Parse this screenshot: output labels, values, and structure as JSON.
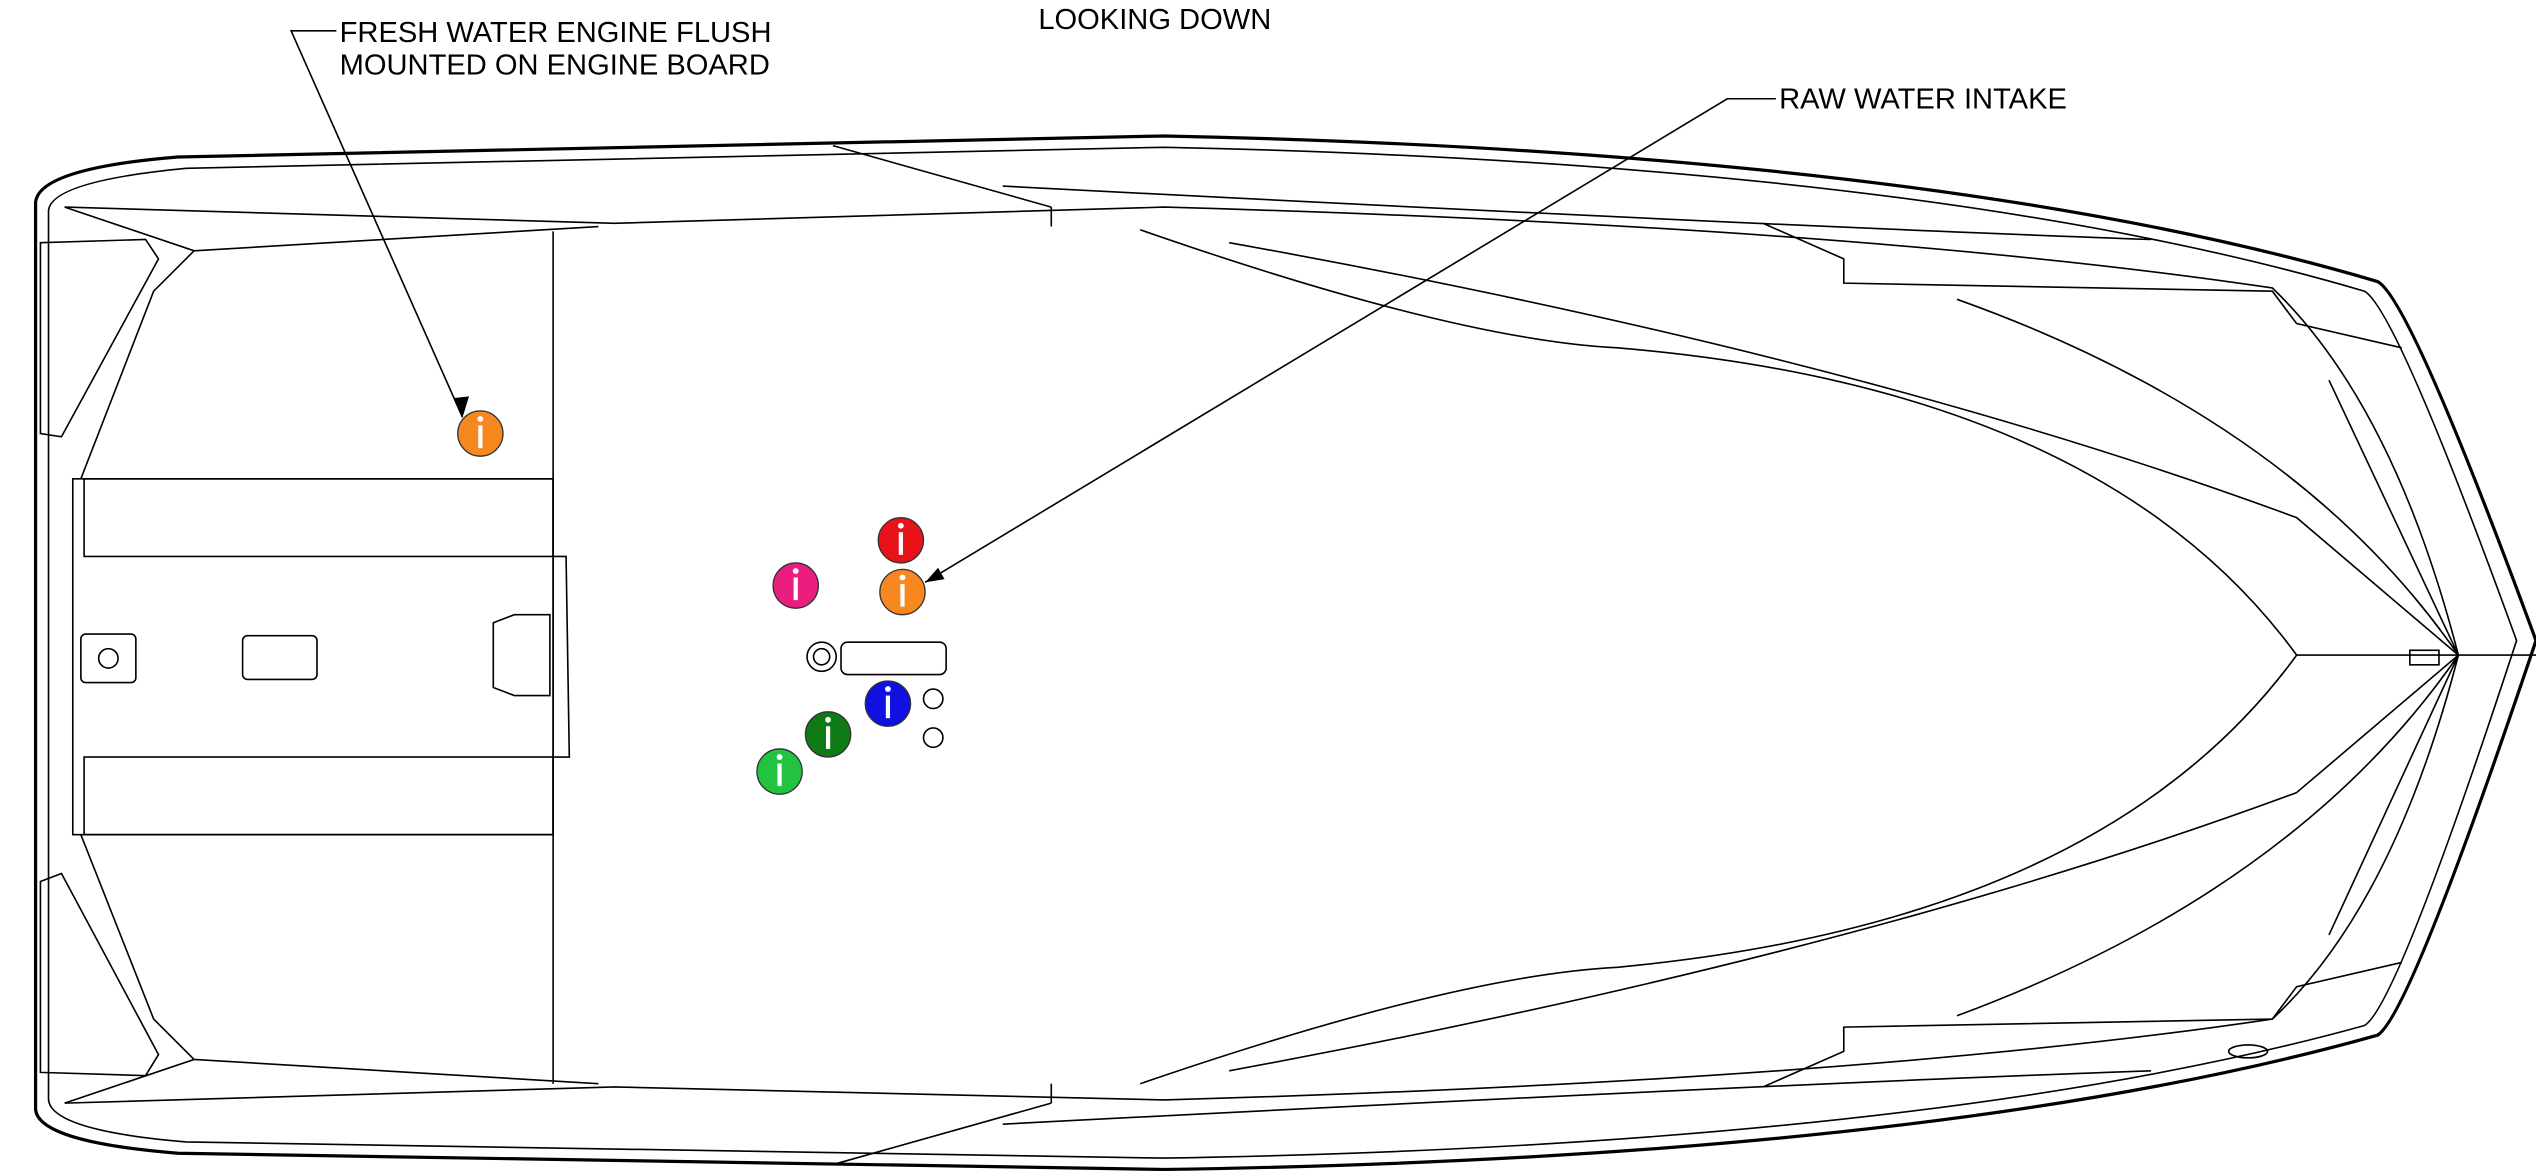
{
  "title": "LOOKING DOWN",
  "callouts": [
    {
      "lines": [
        "FRESH WATER ENGINE FLUSH",
        "MOUNTED ON ENGINE BOARD"
      ]
    },
    {
      "lines": [
        "RAW WATER INTAKE"
      ]
    }
  ]
}
